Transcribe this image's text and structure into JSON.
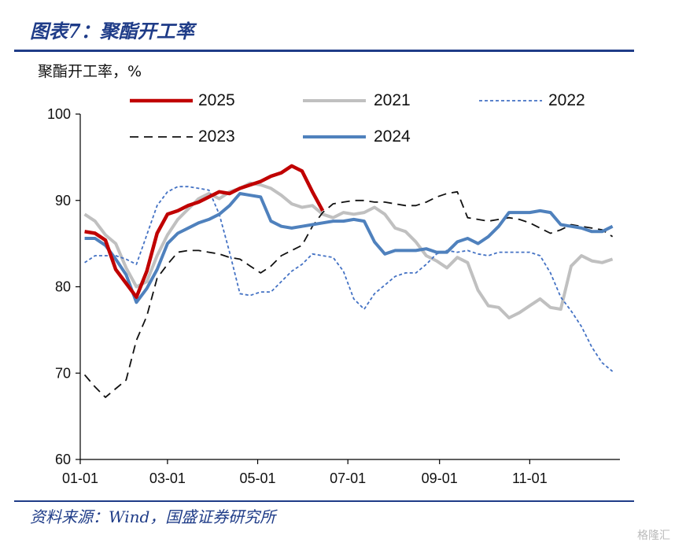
{
  "header": {
    "figure_title": "图表7：聚酯开工率",
    "unit_label": "聚酯开工率，%",
    "source": "资料来源：Wind，国盛证券研究所",
    "watermark": "格隆汇"
  },
  "colors": {
    "brand_blue": "#1f3c88",
    "s2025": "#c00000",
    "s2021": "#c0c0c0",
    "s2022": "#4472c4",
    "s2023": "#111111",
    "s2024": "#4f81bd"
  },
  "chart_data": {
    "type": "line",
    "title": "",
    "xlabel": "",
    "ylabel": "聚酯开工率，%",
    "x_ticks": [
      "01-01",
      "03-01",
      "05-01",
      "07-01",
      "09-01",
      "11-01"
    ],
    "y_ticks": [
      "60",
      "70",
      "80",
      "90",
      "100"
    ],
    "ylim": [
      60,
      100
    ],
    "xlim": [
      0,
      365
    ],
    "grid": false,
    "legend_position": "top",
    "series": [
      {
        "name": "2025",
        "style": "solid-thick",
        "points": [
          [
            3,
            86.4
          ],
          [
            10,
            86.2
          ],
          [
            17,
            85.4
          ],
          [
            24,
            82.0
          ],
          [
            31,
            80.4
          ],
          [
            38,
            78.8
          ],
          [
            45,
            81.8
          ],
          [
            52,
            86.2
          ],
          [
            59,
            88.4
          ],
          [
            66,
            88.8
          ],
          [
            73,
            89.4
          ],
          [
            80,
            89.8
          ],
          [
            87,
            90.4
          ],
          [
            94,
            91.0
          ],
          [
            101,
            90.8
          ],
          [
            108,
            91.4
          ],
          [
            115,
            91.8
          ],
          [
            122,
            92.2
          ],
          [
            129,
            92.8
          ],
          [
            136,
            93.2
          ],
          [
            143,
            94.0
          ],
          [
            150,
            93.4
          ],
          [
            157,
            91.0
          ],
          [
            164,
            88.8
          ]
        ]
      },
      {
        "name": "2021",
        "style": "solid-light",
        "points": [
          [
            3,
            88.4
          ],
          [
            10,
            87.6
          ],
          [
            17,
            86.0
          ],
          [
            24,
            85.0
          ],
          [
            31,
            82.2
          ],
          [
            38,
            80.0
          ],
          [
            45,
            80.6
          ],
          [
            52,
            83.6
          ],
          [
            59,
            86.0
          ],
          [
            66,
            87.8
          ],
          [
            73,
            89.0
          ],
          [
            80,
            90.2
          ],
          [
            87,
            90.8
          ],
          [
            94,
            90.2
          ],
          [
            101,
            91.0
          ],
          [
            108,
            91.4
          ],
          [
            115,
            92.0
          ],
          [
            122,
            91.8
          ],
          [
            129,
            91.4
          ],
          [
            136,
            90.6
          ],
          [
            143,
            89.6
          ],
          [
            150,
            89.2
          ],
          [
            157,
            89.4
          ],
          [
            164,
            88.4
          ],
          [
            171,
            88.0
          ],
          [
            178,
            88.6
          ],
          [
            185,
            88.4
          ],
          [
            192,
            88.6
          ],
          [
            199,
            89.2
          ],
          [
            206,
            88.4
          ],
          [
            213,
            86.8
          ],
          [
            220,
            86.4
          ],
          [
            227,
            85.2
          ],
          [
            234,
            83.6
          ],
          [
            241,
            83.0
          ],
          [
            248,
            82.2
          ],
          [
            255,
            83.4
          ],
          [
            262,
            82.8
          ],
          [
            269,
            79.6
          ],
          [
            276,
            77.8
          ],
          [
            283,
            77.6
          ],
          [
            290,
            76.4
          ],
          [
            297,
            77.0
          ],
          [
            304,
            77.8
          ],
          [
            311,
            78.6
          ],
          [
            318,
            77.6
          ],
          [
            325,
            77.4
          ],
          [
            332,
            82.4
          ],
          [
            339,
            83.6
          ],
          [
            346,
            83.0
          ],
          [
            353,
            82.8
          ],
          [
            360,
            83.2
          ]
        ]
      },
      {
        "name": "2022",
        "style": "dotted",
        "points": [
          [
            3,
            82.8
          ],
          [
            10,
            83.6
          ],
          [
            17,
            83.6
          ],
          [
            24,
            83.6
          ],
          [
            31,
            83.2
          ],
          [
            38,
            82.6
          ],
          [
            45,
            86.0
          ],
          [
            52,
            89.4
          ],
          [
            59,
            91.0
          ],
          [
            66,
            91.6
          ],
          [
            73,
            91.6
          ],
          [
            80,
            91.4
          ],
          [
            87,
            91.2
          ],
          [
            94,
            88.4
          ],
          [
            101,
            84.0
          ],
          [
            108,
            79.2
          ],
          [
            115,
            79.0
          ],
          [
            122,
            79.4
          ],
          [
            129,
            79.4
          ],
          [
            136,
            80.6
          ],
          [
            143,
            81.8
          ],
          [
            150,
            82.6
          ],
          [
            157,
            83.8
          ],
          [
            164,
            83.6
          ],
          [
            171,
            83.4
          ],
          [
            178,
            81.8
          ],
          [
            185,
            78.6
          ],
          [
            192,
            77.4
          ],
          [
            199,
            79.2
          ],
          [
            206,
            80.2
          ],
          [
            213,
            81.2
          ],
          [
            220,
            81.6
          ],
          [
            227,
            81.6
          ],
          [
            234,
            82.6
          ],
          [
            241,
            83.8
          ],
          [
            248,
            84.2
          ],
          [
            255,
            84.0
          ],
          [
            262,
            84.2
          ],
          [
            269,
            83.8
          ],
          [
            276,
            83.6
          ],
          [
            283,
            84.0
          ],
          [
            290,
            84.0
          ],
          [
            297,
            84.0
          ],
          [
            304,
            84.0
          ],
          [
            311,
            83.6
          ],
          [
            318,
            81.6
          ],
          [
            325,
            78.8
          ],
          [
            332,
            77.2
          ],
          [
            339,
            75.4
          ],
          [
            346,
            73.0
          ],
          [
            353,
            71.2
          ],
          [
            360,
            70.2
          ]
        ]
      },
      {
        "name": "2023",
        "style": "dashed",
        "points": [
          [
            3,
            69.8
          ],
          [
            10,
            68.4
          ],
          [
            17,
            67.2
          ],
          [
            24,
            68.2
          ],
          [
            31,
            69.2
          ],
          [
            38,
            73.8
          ],
          [
            45,
            76.6
          ],
          [
            52,
            81.0
          ],
          [
            59,
            82.6
          ],
          [
            66,
            84.0
          ],
          [
            73,
            84.2
          ],
          [
            80,
            84.2
          ],
          [
            87,
            84.0
          ],
          [
            94,
            83.8
          ],
          [
            101,
            83.4
          ],
          [
            108,
            83.2
          ],
          [
            115,
            82.4
          ],
          [
            122,
            81.6
          ],
          [
            129,
            82.4
          ],
          [
            136,
            83.6
          ],
          [
            143,
            84.2
          ],
          [
            150,
            84.8
          ],
          [
            157,
            87.0
          ],
          [
            164,
            88.6
          ],
          [
            171,
            89.6
          ],
          [
            178,
            89.8
          ],
          [
            185,
            90.0
          ],
          [
            192,
            90.0
          ],
          [
            199,
            89.8
          ],
          [
            206,
            89.8
          ],
          [
            213,
            89.6
          ],
          [
            220,
            89.4
          ],
          [
            227,
            89.4
          ],
          [
            234,
            89.8
          ],
          [
            241,
            90.4
          ],
          [
            248,
            90.8
          ],
          [
            255,
            91.0
          ],
          [
            262,
            88.0
          ],
          [
            269,
            87.8
          ],
          [
            276,
            87.6
          ],
          [
            283,
            87.8
          ],
          [
            290,
            88.0
          ],
          [
            297,
            87.8
          ],
          [
            304,
            87.4
          ],
          [
            311,
            86.8
          ],
          [
            318,
            86.2
          ],
          [
            325,
            86.6
          ],
          [
            332,
            87.2
          ],
          [
            339,
            87.0
          ],
          [
            346,
            86.8
          ],
          [
            353,
            86.6
          ],
          [
            360,
            85.8
          ]
        ]
      },
      {
        "name": "2024",
        "style": "solid",
        "points": [
          [
            3,
            85.6
          ],
          [
            10,
            85.6
          ],
          [
            17,
            84.8
          ],
          [
            24,
            83.2
          ],
          [
            31,
            81.4
          ],
          [
            38,
            78.2
          ],
          [
            45,
            79.8
          ],
          [
            52,
            82.0
          ],
          [
            59,
            85.0
          ],
          [
            66,
            86.2
          ],
          [
            73,
            86.8
          ],
          [
            80,
            87.4
          ],
          [
            87,
            87.8
          ],
          [
            94,
            88.4
          ],
          [
            101,
            89.4
          ],
          [
            108,
            90.8
          ],
          [
            115,
            90.6
          ],
          [
            122,
            90.4
          ],
          [
            129,
            87.6
          ],
          [
            136,
            87.0
          ],
          [
            143,
            86.8
          ],
          [
            150,
            87.0
          ],
          [
            157,
            87.2
          ],
          [
            164,
            87.4
          ],
          [
            171,
            87.6
          ],
          [
            178,
            87.6
          ],
          [
            185,
            87.8
          ],
          [
            192,
            87.6
          ],
          [
            199,
            85.2
          ],
          [
            206,
            83.8
          ],
          [
            213,
            84.2
          ],
          [
            220,
            84.2
          ],
          [
            227,
            84.2
          ],
          [
            234,
            84.4
          ],
          [
            241,
            84.0
          ],
          [
            248,
            84.0
          ],
          [
            255,
            85.2
          ],
          [
            262,
            85.6
          ],
          [
            269,
            85.0
          ],
          [
            276,
            85.8
          ],
          [
            283,
            87.0
          ],
          [
            290,
            88.6
          ],
          [
            297,
            88.6
          ],
          [
            304,
            88.6
          ],
          [
            311,
            88.8
          ],
          [
            318,
            88.6
          ],
          [
            325,
            87.2
          ],
          [
            332,
            87.0
          ],
          [
            339,
            86.8
          ],
          [
            346,
            86.4
          ],
          [
            353,
            86.4
          ],
          [
            360,
            87.0
          ]
        ]
      }
    ]
  }
}
